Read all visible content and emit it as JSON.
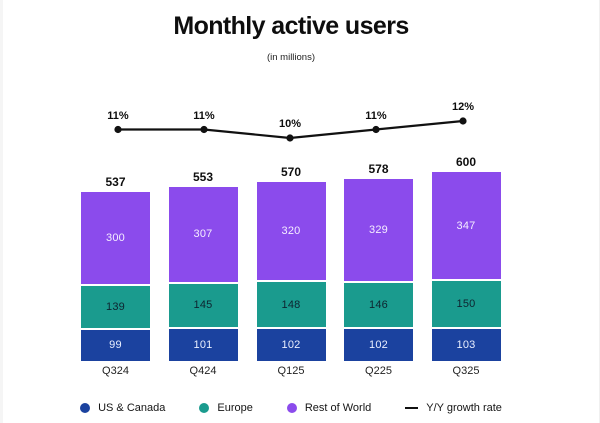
{
  "header": {
    "title": "Monthly active users",
    "subtitle": "(in millions)"
  },
  "chart_data": {
    "type": "bar",
    "stacked": true,
    "title": "Monthly active users",
    "subtitle": "(in millions)",
    "categories": [
      "Q324",
      "Q424",
      "Q125",
      "Q225",
      "Q325"
    ],
    "series": [
      {
        "name": "US & Canada",
        "color": "#1B429F",
        "label_color": "#e9efff",
        "values": [
          99,
          101,
          102,
          102,
          103
        ]
      },
      {
        "name": "Europe",
        "color": "#1A9B8E",
        "label_color": "#0e2430",
        "values": [
          139,
          145,
          148,
          146,
          150
        ]
      },
      {
        "name": "Rest of World",
        "color": "#8B4BEC",
        "label_color": "#f5eeff",
        "values": [
          300,
          307,
          320,
          329,
          347
        ]
      }
    ],
    "totals": [
      537,
      553,
      570,
      578,
      600
    ],
    "line_series": {
      "name": "Y/Y growth rate",
      "color": "#111111",
      "values_pct": [
        11,
        11,
        10,
        11,
        12
      ],
      "labels": [
        "11%",
        "11%",
        "10%",
        "11%",
        "12%"
      ]
    },
    "value_axis_visible": false,
    "grid": false,
    "legend_position": "bottom"
  },
  "legend": {
    "items": [
      {
        "label": "US & Canada",
        "swatch": "circle",
        "color": "#1B429F"
      },
      {
        "label": "Europe",
        "swatch": "circle",
        "color": "#1A9B8E"
      },
      {
        "label": "Rest of World",
        "swatch": "circle",
        "color": "#8B4BEC"
      },
      {
        "label": "Y/Y growth rate",
        "swatch": "dash",
        "color": "#111111"
      }
    ]
  }
}
